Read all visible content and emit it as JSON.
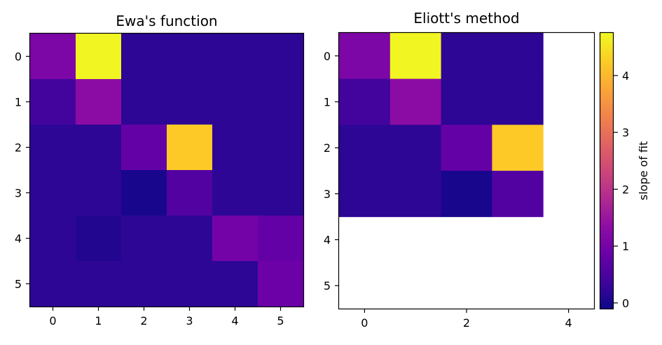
{
  "chart_data": [
    {
      "type": "heatmap",
      "title": "Ewa's function",
      "x_ticks": [
        "0",
        "1",
        "2",
        "3",
        "4",
        "5"
      ],
      "y_ticks": [
        "0",
        "1",
        "2",
        "3",
        "4",
        "5"
      ],
      "rows": 6,
      "cols": 6,
      "values": [
        [
          1.1,
          4.7,
          0.2,
          0.2,
          0.2,
          0.2
        ],
        [
          0.4,
          1.3,
          0.2,
          0.2,
          0.2,
          0.2
        ],
        [
          0.2,
          0.2,
          0.8,
          4.2,
          0.2,
          0.2
        ],
        [
          0.2,
          0.2,
          0.0,
          0.6,
          0.2,
          0.2
        ],
        [
          0.2,
          0.1,
          0.2,
          0.2,
          1.0,
          0.8
        ],
        [
          0.2,
          0.2,
          0.2,
          0.2,
          0.2,
          0.9
        ]
      ]
    },
    {
      "type": "heatmap",
      "title": "Eliott's method",
      "x_ticks": [
        "0",
        "2",
        "4"
      ],
      "x_tick_positions": [
        0,
        2,
        4
      ],
      "y_ticks": [
        "0",
        "1",
        "2",
        "3",
        "4",
        "5"
      ],
      "rows": 6,
      "cols": 5,
      "values": [
        [
          1.1,
          4.7,
          0.2,
          0.2,
          null
        ],
        [
          0.4,
          1.3,
          0.2,
          0.2,
          null
        ],
        [
          0.2,
          0.2,
          0.8,
          4.2,
          null
        ],
        [
          0.2,
          0.2,
          0.0,
          0.6,
          null
        ],
        [
          null,
          null,
          null,
          null,
          null
        ],
        [
          null,
          null,
          null,
          null,
          null
        ]
      ]
    }
  ],
  "colorbar": {
    "label": "slope of fit",
    "vmin": -0.1,
    "vmax": 4.75,
    "ticks": [
      "0",
      "1",
      "2",
      "3",
      "4"
    ],
    "tick_values": [
      0,
      1,
      2,
      3,
      4
    ],
    "colormap": "plasma"
  }
}
